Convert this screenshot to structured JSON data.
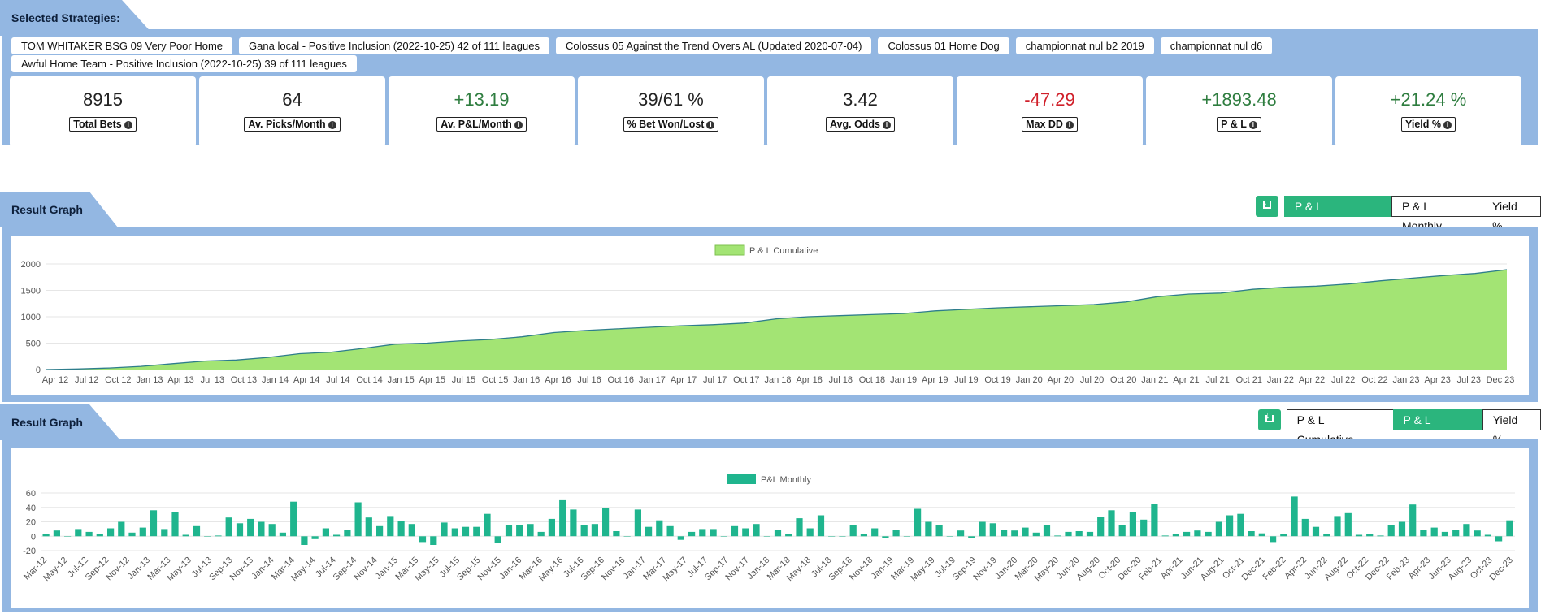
{
  "strategies": {
    "title": "Selected Strategies:",
    "items": [
      "TOM WHITAKER BSG 09 Very Poor Home",
      "Gana local - Positive Inclusion (2022-10-25) 42 of 111 leagues",
      "Colossus 05 Against the Trend Overs AL (Updated 2020-07-04)",
      "Colossus 01 Home Dog",
      "championnat nul b2 2019",
      "championnat nul d6",
      "Awful Home Team - Positive Inclusion (2022-10-25) 39 of 111 leagues"
    ]
  },
  "stats": [
    {
      "value": "8915",
      "label": "Total Bets",
      "tone": "neutral"
    },
    {
      "value": "64",
      "label": "Av. Picks/Month",
      "tone": "neutral"
    },
    {
      "value": "+13.19",
      "label": "Av. P&L/Month",
      "tone": "pos"
    },
    {
      "value": "39/61 %",
      "label": "% Bet Won/Lost",
      "tone": "neutral"
    },
    {
      "value": "3.42",
      "label": "Avg. Odds",
      "tone": "neutral"
    },
    {
      "value": "-47.29",
      "label": "Max DD",
      "tone": "neg"
    },
    {
      "value": "+1893.48",
      "label": "P & L",
      "tone": "pos"
    },
    {
      "value": "+21.24 %",
      "label": "Yield %",
      "tone": "pos"
    }
  ],
  "graph1": {
    "title": "Result Graph",
    "buttons": [
      "P & L Cumulative",
      "P & L Monthly",
      "Yield %"
    ],
    "active": 0
  },
  "graph2": {
    "title": "Result Graph",
    "buttons": [
      "P & L Cumulative",
      "P & L Monthly",
      "Yield %"
    ],
    "active": 1
  },
  "colors": {
    "panel": "#93b7e2",
    "accent": "#2bb57d",
    "area_fill": "#a3e474",
    "area_line": "#2e7d8c",
    "bar": "#1fb58e"
  },
  "chart_data": [
    {
      "type": "area",
      "legend": "P & L Cumulative",
      "yticks": [
        0,
        500,
        1000,
        1500,
        2000
      ],
      "ylim": [
        0,
        2000
      ],
      "xticks": [
        "Apr 12",
        "Jul 12",
        "Oct 12",
        "Jan 13",
        "Apr 13",
        "Jul 13",
        "Oct 13",
        "Jan 14",
        "Apr 14",
        "Jul 14",
        "Oct 14",
        "Jan 15",
        "Apr 15",
        "Jul 15",
        "Oct 15",
        "Jan 16",
        "Apr 16",
        "Jul 16",
        "Oct 16",
        "Jan 17",
        "Apr 17",
        "Jul 17",
        "Oct 17",
        "Jan 18",
        "Apr 18",
        "Jul 18",
        "Oct 18",
        "Jan 19",
        "Apr 19",
        "Jul 19",
        "Oct 19",
        "Jan 20",
        "Apr 20",
        "Jul 20",
        "Oct 20",
        "Jan 21",
        "Apr 21",
        "Jul 21",
        "Oct 21",
        "Jan 22",
        "Apr 22",
        "Jul 22",
        "Oct 22",
        "Jan 23",
        "Apr 23",
        "Jul 23",
        "Dec 23"
      ],
      "values": [
        0,
        10,
        30,
        60,
        110,
        160,
        180,
        230,
        300,
        330,
        400,
        480,
        500,
        540,
        570,
        620,
        700,
        740,
        770,
        800,
        830,
        850,
        880,
        960,
        1000,
        1020,
        1040,
        1060,
        1110,
        1140,
        1170,
        1190,
        1210,
        1230,
        1280,
        1380,
        1430,
        1450,
        1520,
        1560,
        1580,
        1620,
        1680,
        1730,
        1780,
        1820,
        1893
      ]
    },
    {
      "type": "bar",
      "legend": "P&L Monthly",
      "yticks": [
        -20,
        0,
        20,
        40,
        60
      ],
      "ylim": [
        -20,
        60
      ],
      "xticks": [
        "Mar-12",
        "May-12",
        "Jul-12",
        "Sep-12",
        "Nov-12",
        "Jan-13",
        "Mar-13",
        "May-13",
        "Jul-13",
        "Sep-13",
        "Nov-13",
        "Jan-14",
        "Mar-14",
        "May-14",
        "Jul-14",
        "Sep-14",
        "Nov-14",
        "Jan-15",
        "Mar-15",
        "May-15",
        "Jul-15",
        "Sep-15",
        "Nov-15",
        "Jan-16",
        "Mar-16",
        "May-16",
        "Jul-16",
        "Sep-16",
        "Nov-16",
        "Jan-17",
        "Mar-17",
        "May-17",
        "Jul-17",
        "Sep-17",
        "Nov-17",
        "Jan-18",
        "Mar-18",
        "May-18",
        "Jul-18",
        "Sep-18",
        "Nov-18",
        "Jan-19",
        "Mar-19",
        "May-19",
        "Jul-19",
        "Sep-19",
        "Nov-19",
        "Jan-20",
        "Mar-20",
        "May-20",
        "Jun-20",
        "Aug-20",
        "Oct-20",
        "Dec-20",
        "Feb-21",
        "Apr-21",
        "Jun-21",
        "Aug-21",
        "Oct-21",
        "Dec-21",
        "Feb-22",
        "Apr-22",
        "Jun-22",
        "Aug-22",
        "Oct-22",
        "Dec-22",
        "Feb-23",
        "Apr-23",
        "Jun-23",
        "Aug-23",
        "Oct-23",
        "Dec-23"
      ],
      "values": [
        3,
        8,
        0,
        10,
        6,
        3,
        11,
        20,
        5,
        12,
        36,
        10,
        34,
        2,
        14,
        0,
        1,
        26,
        18,
        24,
        20,
        17,
        5,
        48,
        -12,
        -4,
        11,
        2,
        9,
        47,
        26,
        14,
        28,
        21,
        17,
        -8,
        -12,
        19,
        11,
        13,
        13,
        31,
        -9,
        16,
        16,
        17,
        6,
        24,
        50,
        37,
        15,
        17,
        39,
        7,
        0,
        37,
        13,
        22,
        14,
        -5,
        6,
        10,
        10,
        0,
        14,
        11,
        17,
        0,
        9,
        3,
        25,
        11,
        29,
        0,
        0,
        15,
        3,
        11,
        -3,
        9,
        0,
        38,
        20,
        16,
        0,
        8,
        -3,
        20,
        18,
        9,
        8,
        12,
        5,
        15,
        1,
        6,
        7,
        6,
        27,
        36,
        16,
        33,
        23,
        45,
        1,
        3,
        6,
        8,
        6,
        20,
        29,
        31,
        7,
        4,
        -8,
        3,
        55,
        24,
        13,
        3,
        28,
        32,
        2,
        3,
        1,
        16,
        20,
        44,
        9,
        12,
        6,
        9,
        17,
        8,
        2,
        -7,
        22
      ]
    }
  ]
}
